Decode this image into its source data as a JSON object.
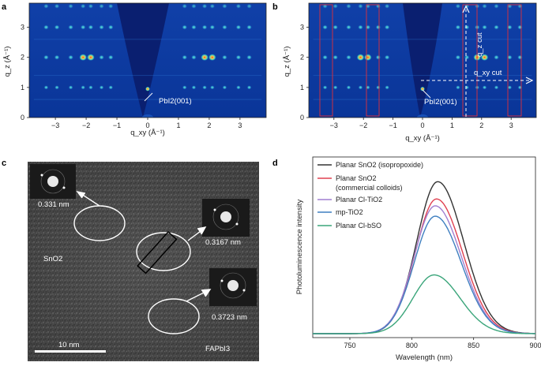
{
  "panels": {
    "a": {
      "label": "a",
      "annotation": "PbI2(001)",
      "xlabel": "q_xy (Å⁻¹)",
      "ylabel": "q_z (Å⁻¹)",
      "xticks": [
        "−3",
        "−2",
        "−1",
        "0",
        "1",
        "2",
        "3"
      ],
      "yticks": [
        "0",
        "1",
        "2",
        "3"
      ]
    },
    "b": {
      "label": "b",
      "annotation": "PbI2(001)",
      "qz_cut": "q_z cut",
      "qxy_cut": "q_xy cut",
      "xlabel": "q_xy (Å⁻¹)",
      "ylabel": "q_z (Å⁻¹)",
      "xticks": [
        "−3",
        "−2",
        "−1",
        "0",
        "1",
        "2",
        "3"
      ],
      "yticks": [
        "0",
        "1",
        "2",
        "3"
      ]
    },
    "c": {
      "label": "c",
      "fft_spacings": [
        "0.331 nm",
        "0.3167 nm",
        "0.3723 nm"
      ],
      "region_labels": [
        "SnO2",
        "FAPbI3"
      ],
      "scalebar": "10 nm"
    },
    "d": {
      "label": "d"
    }
  },
  "chart_data": {
    "type": "line",
    "xlabel": "Wavelength (nm)",
    "ylabel": "Photoluminescence intensity",
    "xlim": [
      720,
      900
    ],
    "xticks": [
      "750",
      "800",
      "850",
      "900"
    ],
    "series": [
      {
        "name": "Planar SnO2 (isopropoxide)",
        "color": "#333333",
        "peak_x": 821,
        "peak": 0.88
      },
      {
        "name": "Planar SnO2 (commercial colloids)",
        "color": "#e04050",
        "peak_x": 820,
        "peak": 0.78
      },
      {
        "name": "Planar Cl-TiO2",
        "color": "#a07fd0",
        "peak_x": 819,
        "peak": 0.74
      },
      {
        "name": "mp-TiO2",
        "color": "#3f7fc0",
        "peak_x": 819,
        "peak": 0.68
      },
      {
        "name": "Planar Cl-bSO",
        "color": "#3aa57a",
        "peak_x": 818,
        "peak": 0.34
      }
    ]
  }
}
